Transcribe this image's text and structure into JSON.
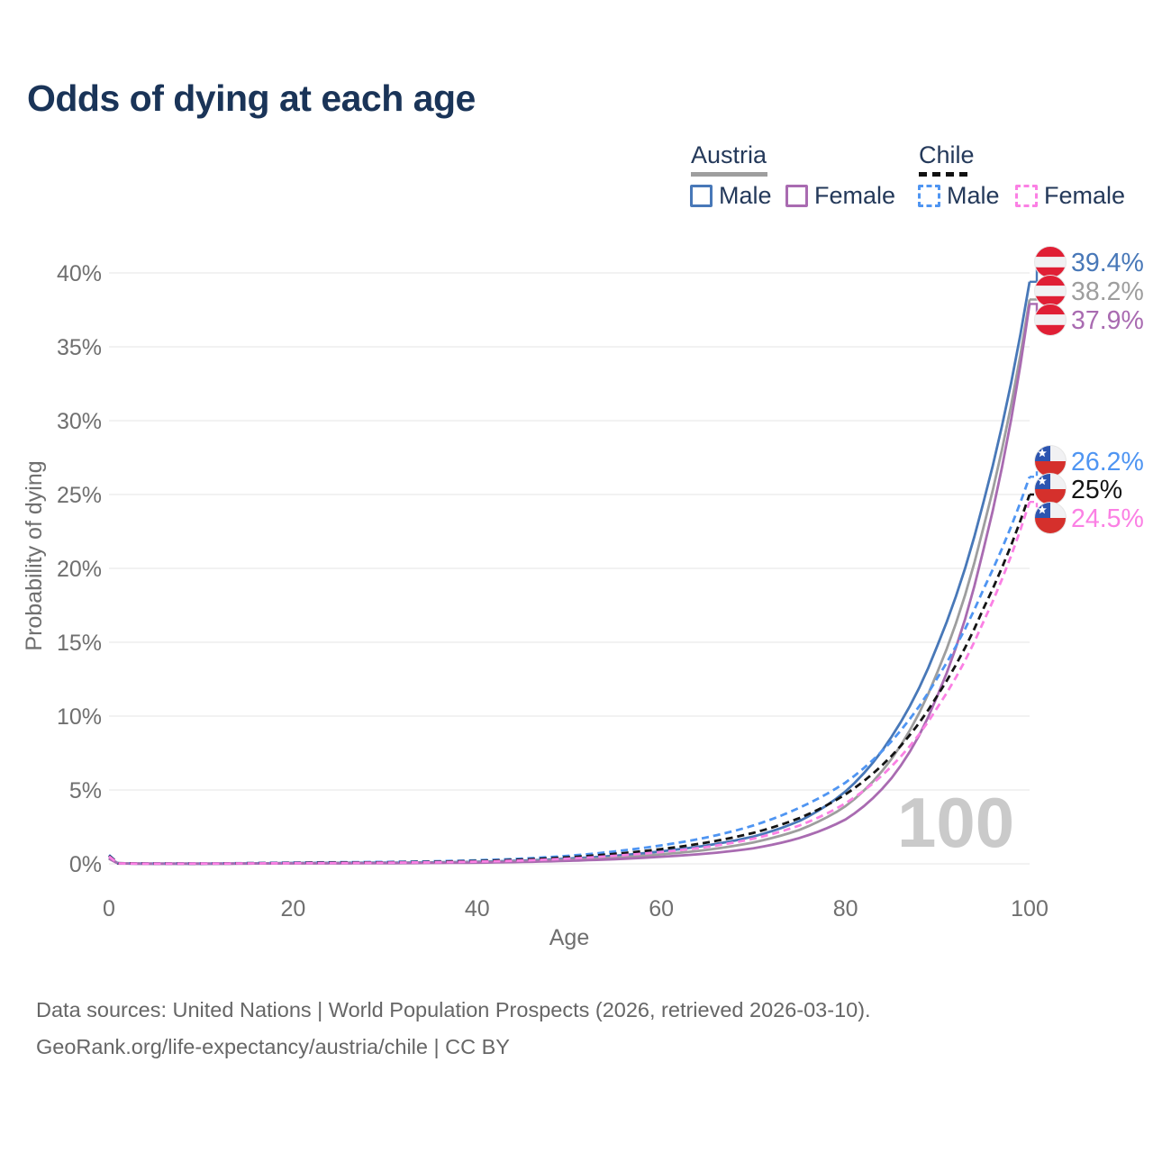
{
  "title": "Odds of dying at each age",
  "watermark": "100",
  "legend": {
    "austria": {
      "label": "Austria",
      "male": "Male",
      "female": "Female"
    },
    "chile": {
      "label": "Chile",
      "male": "Male",
      "female": "Female"
    }
  },
  "footer": {
    "line1": "Data sources: United Nations | World Population Prospects (2026, retrieved 2026-03-10).",
    "line2": "GeoRank.org/life-expectancy/austria/chile | CC BY"
  },
  "colors": {
    "title": "#1a3458",
    "legend_text": "#24395a",
    "austria_male": "#4878b8",
    "austria_total": "#9e9e9e",
    "austria_female": "#a96bb1",
    "chile_male": "#4f95f2",
    "chile_total": "#141414",
    "chile_female": "#fb80e4",
    "grid": "#e9e9e9",
    "axis_text": "#6f6f6f",
    "watermark": "#cacaca",
    "footer_text": "#666666",
    "flag_austria_red": "#e01f35",
    "flag_chile_blue": "#2c55b0",
    "flag_chile_red": "#d5302c"
  },
  "chart_data": {
    "type": "line",
    "title": "Odds of dying at each age",
    "xlabel": "Age",
    "ylabel": "Probability of dying",
    "xlim": [
      0,
      100
    ],
    "ylim": [
      0,
      40
    ],
    "xticks": [
      0,
      20,
      40,
      60,
      80,
      100
    ],
    "yticks": [
      0,
      5,
      10,
      15,
      20,
      25,
      30,
      35,
      40
    ],
    "ytick_suffix": "%",
    "grid": "horizontal",
    "legend_position": "top-right",
    "ages": [
      0,
      1,
      5,
      10,
      15,
      20,
      25,
      30,
      35,
      40,
      45,
      50,
      55,
      60,
      65,
      70,
      75,
      80,
      85,
      90,
      95,
      100
    ],
    "series": [
      {
        "name": "Austria Male",
        "country": "austria",
        "sex": "male",
        "dash": "solid",
        "color": "#4878b8",
        "end_label": "39.4%",
        "values": [
          0.4,
          0.03,
          0.01,
          0.01,
          0.03,
          0.06,
          0.07,
          0.08,
          0.1,
          0.14,
          0.22,
          0.36,
          0.55,
          0.85,
          1.25,
          1.85,
          2.9,
          4.9,
          8.6,
          14.8,
          24.5,
          39.4
        ]
      },
      {
        "name": "Austria",
        "country": "austria",
        "sex": "all",
        "dash": "solid",
        "color": "#9e9e9e",
        "end_label": "38.2%",
        "values": [
          0.37,
          0.03,
          0.01,
          0.01,
          0.02,
          0.04,
          0.05,
          0.06,
          0.08,
          0.11,
          0.17,
          0.28,
          0.43,
          0.65,
          0.95,
          1.45,
          2.3,
          3.9,
          7.1,
          13.0,
          22.8,
          38.2
        ]
      },
      {
        "name": "Austria Female",
        "country": "austria",
        "sex": "female",
        "dash": "solid",
        "color": "#a96bb1",
        "end_label": "37.9%",
        "values": [
          0.35,
          0.02,
          0.01,
          0.01,
          0.02,
          0.03,
          0.03,
          0.04,
          0.06,
          0.08,
          0.13,
          0.21,
          0.32,
          0.48,
          0.7,
          1.05,
          1.75,
          3.0,
          5.8,
          11.4,
          21.3,
          37.9
        ]
      },
      {
        "name": "Chile Male",
        "country": "chile",
        "sex": "male",
        "dash": "dashed",
        "color": "#4f95f2",
        "end_label": "26.2%",
        "values": [
          0.6,
          0.04,
          0.02,
          0.02,
          0.05,
          0.09,
          0.11,
          0.13,
          0.17,
          0.24,
          0.36,
          0.55,
          0.85,
          1.25,
          1.8,
          2.6,
          3.8,
          5.5,
          8.3,
          12.6,
          18.6,
          26.2
        ]
      },
      {
        "name": "Chile",
        "country": "chile",
        "sex": "all",
        "dash": "dashed",
        "color": "#141414",
        "end_label": "25%",
        "values": [
          0.55,
          0.04,
          0.02,
          0.02,
          0.04,
          0.07,
          0.09,
          0.1,
          0.14,
          0.19,
          0.29,
          0.45,
          0.68,
          1.0,
          1.45,
          2.1,
          3.1,
          4.7,
          7.3,
          11.4,
          17.3,
          25.0
        ]
      },
      {
        "name": "Chile Female",
        "country": "chile",
        "sex": "female",
        "dash": "dashed",
        "color": "#fb80e4",
        "end_label": "24.5%",
        "values": [
          0.5,
          0.03,
          0.01,
          0.02,
          0.03,
          0.05,
          0.06,
          0.08,
          0.11,
          0.15,
          0.23,
          0.36,
          0.55,
          0.8,
          1.15,
          1.7,
          2.6,
          4.1,
          6.6,
          10.6,
          16.4,
          24.5
        ]
      }
    ]
  }
}
